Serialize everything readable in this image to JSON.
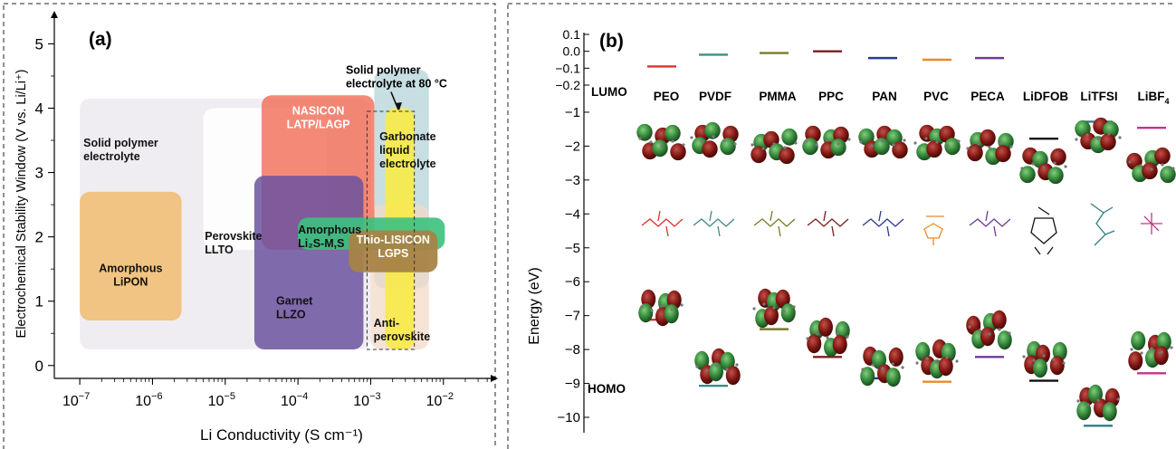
{
  "chart_data": [
    {
      "type": "area",
      "panel_label": "(a)",
      "xlabel": "Li Conductivity (S cm⁻¹)",
      "ylabel": "Electrochemical Stability Window (V vs. Li/Li⁺)",
      "x_scale": "log",
      "xlim_log10": [
        -7.35,
        -1.35
      ],
      "ylim": [
        -0.2,
        5.4
      ],
      "x_tick_exponents": [
        -7,
        -6,
        -5,
        -4,
        -3,
        -2
      ],
      "y_ticks": [
        0,
        1,
        2,
        3,
        4,
        5
      ],
      "regions": [
        {
          "name": "Solid polymer electrolyte",
          "label": [
            "Solid polymer",
            "electrolyte"
          ],
          "x_log10": [
            -7.0,
            -3.0
          ],
          "y": [
            0.25,
            4.15
          ],
          "color": "#e6e1ea",
          "opacity": 0.6,
          "text_color": "#111111"
        },
        {
          "name": "Garbonate liquid electrolyte",
          "label": [
            "Garbonate",
            "liquid",
            "electrolyte"
          ],
          "x_log10": [
            -2.95,
            -2.2
          ],
          "y": [
            1.2,
            4.6
          ],
          "color": "#bdd9dd",
          "opacity": 0.85,
          "text_color": "#111111"
        },
        {
          "name": "Anti-perovskite",
          "label": [
            "Anti-",
            "perovskite"
          ],
          "x_log10": [
            -3.0,
            -2.2
          ],
          "y": [
            0.25,
            2.5
          ],
          "color": "#f1dac8",
          "opacity": 0.75,
          "text_color": "#111111"
        },
        {
          "name": "Perovskite LLTO",
          "label": [
            "Perovskite",
            "LLTO"
          ],
          "x_log10": [
            -5.3,
            -3.6
          ],
          "y": [
            1.8,
            4.0
          ],
          "color": "#ffffff",
          "opacity": 0.85,
          "text_color": "#111111"
        },
        {
          "name": "NASICON LATP/LAGP",
          "label": [
            "NASICON",
            "LATP/LAGP"
          ],
          "x_log10": [
            -4.5,
            -2.95
          ],
          "y": [
            1.8,
            4.2
          ],
          "color": "#f26b55",
          "opacity": 0.8,
          "text_color": "#ffffff"
        },
        {
          "name": "Amorphous LiPON",
          "label": [
            "Amorphous",
            "LiPON"
          ],
          "x_log10": [
            -7.0,
            -5.6
          ],
          "y": [
            0.7,
            2.7
          ],
          "color": "#f0c27c",
          "opacity": 0.95,
          "text_color": "#111111"
        },
        {
          "name": "Garnet LLZO",
          "label": [
            "Garnet",
            "LLZO"
          ],
          "x_log10": [
            -4.6,
            -3.1
          ],
          "y": [
            0.25,
            2.95
          ],
          "color": "#6b52a0",
          "opacity": 0.85,
          "text_color": "#111111"
        },
        {
          "name": "Solid polymer electrolyte at 80 °C",
          "label": [],
          "x_log10": [
            -2.8,
            -2.4
          ],
          "y": [
            0.25,
            4.0
          ],
          "color": "#f7ea4e",
          "opacity": 0.95,
          "text_color": "#111111"
        },
        {
          "name": "Amorphous Li2S-M,S",
          "label": [
            "Amorphous",
            "Li₂S-M,S"
          ],
          "x_log10": [
            -4.0,
            -1.98
          ],
          "y": [
            1.8,
            2.3
          ],
          "color": "#3cc17e",
          "opacity": 0.9,
          "text_color": "#111111"
        },
        {
          "name": "Thio-LISICON LGPS",
          "label": [
            "Thio-LISICON",
            "LGPS"
          ],
          "x_log10": [
            -3.3,
            -2.08
          ],
          "y": [
            1.45,
            2.1
          ],
          "color": "#a88346",
          "opacity": 0.95,
          "text_color": "#ffffff"
        }
      ],
      "annotation": {
        "text": [
          "Solid polymer",
          "electrolyte at 80 °C"
        ],
        "x_log10": -2.72,
        "y": 4.45
      }
    },
    {
      "type": "scatter",
      "panel_label": "(b)",
      "ylabel": "Energy (eV)",
      "ylim": [
        -10.4,
        0.25
      ],
      "y_ticks_major": [
        -1,
        -2,
        -3,
        -4,
        -5,
        -6,
        -7,
        -8,
        -9,
        -10
      ],
      "y_ticks_top": [
        0.1,
        0.0,
        -0.1,
        -0.2
      ],
      "lumo_label": "LUMO",
      "homo_label": "HOMO",
      "series": [
        {
          "name": "PEO",
          "lumo": -0.09,
          "homo": -7.12,
          "color": "#d8342c"
        },
        {
          "name": "PVDF",
          "lumo": -0.02,
          "homo": -9.07,
          "color": "#3f8b86"
        },
        {
          "name": "PMMA",
          "lumo": -0.01,
          "homo": -7.4,
          "color": "#7a7a2a"
        },
        {
          "name": "PPC",
          "lumo": 0.0,
          "homo": -8.22,
          "color": "#7a1e1e"
        },
        {
          "name": "PAN",
          "lumo": -0.04,
          "homo": -8.85,
          "color": "#2c3a8a"
        },
        {
          "name": "PVC",
          "lumo": -0.05,
          "homo": -8.95,
          "color": "#e98b2a"
        },
        {
          "name": "PECA",
          "lumo": -0.04,
          "homo": -8.22,
          "color": "#6e3b98"
        },
        {
          "name": "LiDFOB",
          "lumo": -1.78,
          "homo": -8.92,
          "color": "#111111"
        },
        {
          "name": "LiTFSI",
          "lumo": -1.28,
          "homo": -10.25,
          "color": "#2f7f82"
        },
        {
          "name": "LiBF₄",
          "lumo": -1.46,
          "homo": -8.7,
          "color": "#c0368c"
        }
      ]
    }
  ]
}
